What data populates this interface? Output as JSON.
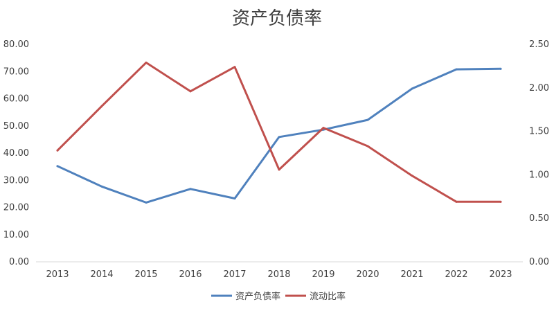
{
  "chart_data": {
    "type": "line",
    "title": "资产负债率",
    "categories": [
      "2013",
      "2014",
      "2015",
      "2016",
      "2017",
      "2018",
      "2019",
      "2020",
      "2021",
      "2022",
      "2023"
    ],
    "series": [
      {
        "name": "资产负债率",
        "axis": "left",
        "color": "#4f81bd",
        "values": [
          35.2,
          27.7,
          21.8,
          26.8,
          23.3,
          45.9,
          48.6,
          52.2,
          63.7,
          70.8,
          71.0
        ]
      },
      {
        "name": "流动比率",
        "axis": "right",
        "color": "#c0504d",
        "values": [
          1.28,
          1.79,
          2.29,
          1.96,
          2.24,
          1.06,
          1.54,
          1.33,
          0.99,
          0.69,
          0.69
        ]
      }
    ],
    "y_left": {
      "min": 0,
      "max": 80,
      "step": 10,
      "decimals": 2
    },
    "y_right": {
      "min": 0,
      "max": 2.5,
      "step": 0.5,
      "decimals": 2
    },
    "grid": false,
    "legend_position": "bottom"
  }
}
